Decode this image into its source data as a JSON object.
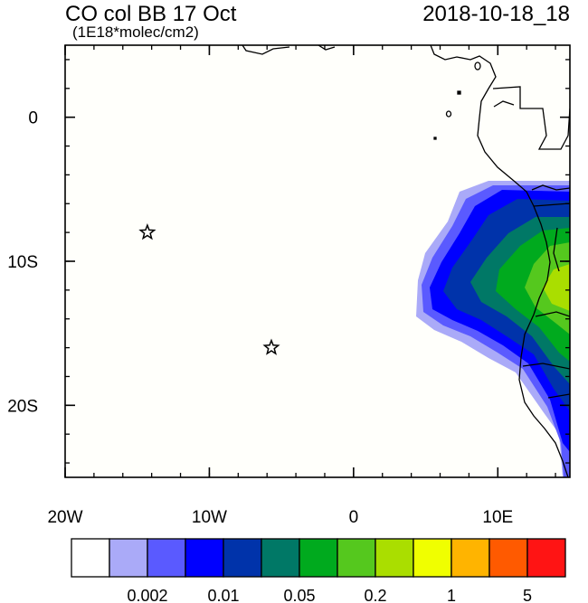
{
  "header": {
    "title": "CO col BB 17 Oct",
    "subtitle": "(1E18*molec/cm2)",
    "timestamp": "2018-10-18_18"
  },
  "map": {
    "lon_range": [
      -20,
      15
    ],
    "lat_range": [
      -25,
      5
    ],
    "x_ticks": [
      {
        "lon": -20,
        "label": "20W"
      },
      {
        "lon": -10,
        "label": "10W"
      },
      {
        "lon": 0,
        "label": "0"
      },
      {
        "lon": 10,
        "label": "10E"
      }
    ],
    "y_ticks": [
      {
        "lat": 0,
        "label": "0"
      },
      {
        "lat": -10,
        "label": "10S"
      },
      {
        "lat": -20,
        "label": "20S"
      }
    ],
    "markers": [
      {
        "lon": -14.3,
        "lat": -8.0,
        "symbol": "star"
      },
      {
        "lon": -5.7,
        "lat": -16.0,
        "symbol": "star"
      }
    ],
    "ocean_color": "#fffffb"
  },
  "colorbar": {
    "colors": [
      "#ffffff",
      "#aaaaf8",
      "#5a5aff",
      "#0000ff",
      "#0033aa",
      "#007866",
      "#00aa1e",
      "#55c81e",
      "#aade00",
      "#f0ff00",
      "#ffb400",
      "#ff5a00",
      "#ff1414"
    ],
    "labels": [
      "0.002",
      "0.01",
      "0.05",
      "0.2",
      "1",
      "5"
    ]
  }
}
